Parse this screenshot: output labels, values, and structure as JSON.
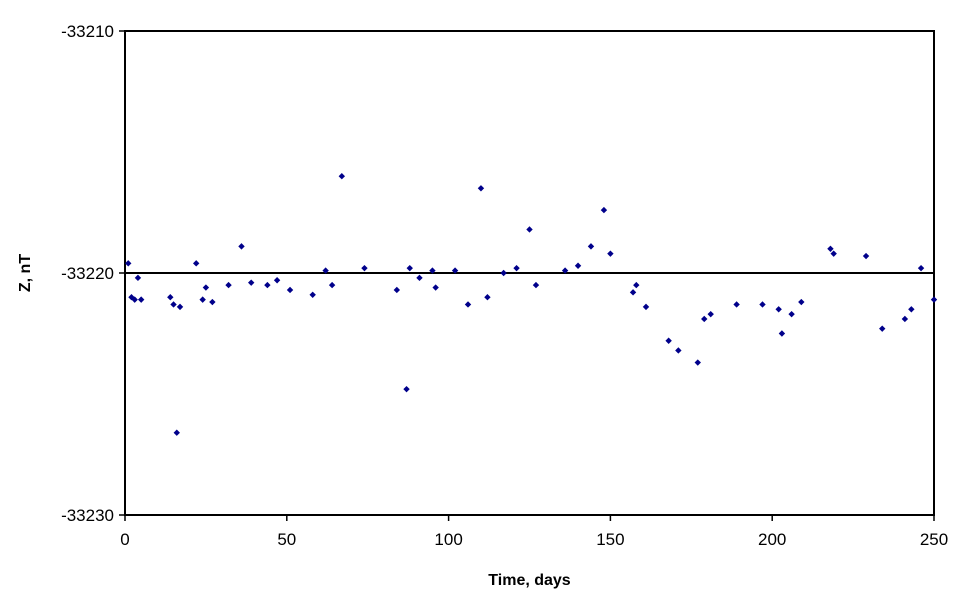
{
  "chart_data": {
    "type": "scatter",
    "title": "",
    "xlabel": "Time, days",
    "ylabel": "Z, nT",
    "xlim": [
      0,
      250
    ],
    "ylim": [
      -33230,
      -33210
    ],
    "xticks": [
      0,
      50,
      100,
      150,
      200,
      250
    ],
    "yticks": [
      -33210,
      -33220,
      -33230
    ],
    "grid": false,
    "legend": "none",
    "reference_line": {
      "y": -33220,
      "color": "#000000"
    },
    "marker_color": "#00008B",
    "points": [
      {
        "x": 1,
        "y": -33219.6
      },
      {
        "x": 2,
        "y": -33221.0
      },
      {
        "x": 3,
        "y": -33221.1
      },
      {
        "x": 4,
        "y": -33220.2
      },
      {
        "x": 5,
        "y": -33221.1
      },
      {
        "x": 14,
        "y": -33221.0
      },
      {
        "x": 15,
        "y": -33221.3
      },
      {
        "x": 16,
        "y": -33226.6
      },
      {
        "x": 17,
        "y": -33221.4
      },
      {
        "x": 22,
        "y": -33219.6
      },
      {
        "x": 24,
        "y": -33221.1
      },
      {
        "x": 25,
        "y": -33220.6
      },
      {
        "x": 27,
        "y": -33221.2
      },
      {
        "x": 32,
        "y": -33220.5
      },
      {
        "x": 36,
        "y": -33218.9
      },
      {
        "x": 39,
        "y": -33220.4
      },
      {
        "x": 44,
        "y": -33220.5
      },
      {
        "x": 47,
        "y": -33220.3
      },
      {
        "x": 51,
        "y": -33220.7
      },
      {
        "x": 58,
        "y": -33220.9
      },
      {
        "x": 62,
        "y": -33219.9
      },
      {
        "x": 64,
        "y": -33220.5
      },
      {
        "x": 67,
        "y": -33216.0
      },
      {
        "x": 74,
        "y": -33219.8
      },
      {
        "x": 84,
        "y": -33220.7
      },
      {
        "x": 87,
        "y": -33224.8
      },
      {
        "x": 88,
        "y": -33219.8
      },
      {
        "x": 91,
        "y": -33220.2
      },
      {
        "x": 95,
        "y": -33219.9
      },
      {
        "x": 96,
        "y": -33220.6
      },
      {
        "x": 102,
        "y": -33219.9
      },
      {
        "x": 106,
        "y": -33221.3
      },
      {
        "x": 110,
        "y": -33216.5
      },
      {
        "x": 112,
        "y": -33221.0
      },
      {
        "x": 117,
        "y": -33220.0
      },
      {
        "x": 121,
        "y": -33219.8
      },
      {
        "x": 125,
        "y": -33218.2
      },
      {
        "x": 127,
        "y": -33220.5
      },
      {
        "x": 136,
        "y": -33219.9
      },
      {
        "x": 140,
        "y": -33219.7
      },
      {
        "x": 144,
        "y": -33218.9
      },
      {
        "x": 148,
        "y": -33217.4
      },
      {
        "x": 150,
        "y": -33219.2
      },
      {
        "x": 157,
        "y": -33220.8
      },
      {
        "x": 158,
        "y": -33220.5
      },
      {
        "x": 161,
        "y": -33221.4
      },
      {
        "x": 168,
        "y": -33222.8
      },
      {
        "x": 171,
        "y": -33223.2
      },
      {
        "x": 177,
        "y": -33223.7
      },
      {
        "x": 179,
        "y": -33221.9
      },
      {
        "x": 181,
        "y": -33221.7
      },
      {
        "x": 189,
        "y": -33221.3
      },
      {
        "x": 197,
        "y": -33221.3
      },
      {
        "x": 202,
        "y": -33221.5
      },
      {
        "x": 203,
        "y": -33222.5
      },
      {
        "x": 206,
        "y": -33221.7
      },
      {
        "x": 209,
        "y": -33221.2
      },
      {
        "x": 218,
        "y": -33219.0
      },
      {
        "x": 219,
        "y": -33219.2
      },
      {
        "x": 229,
        "y": -33219.3
      },
      {
        "x": 234,
        "y": -33222.3
      },
      {
        "x": 241,
        "y": -33221.9
      },
      {
        "x": 243,
        "y": -33221.5
      },
      {
        "x": 246,
        "y": -33219.8
      },
      {
        "x": 250,
        "y": -33221.1
      }
    ]
  }
}
